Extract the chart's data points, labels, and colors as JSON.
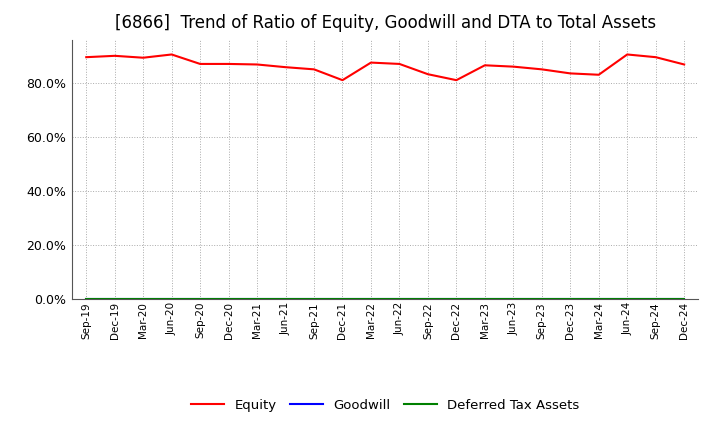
{
  "title": "[6866]  Trend of Ratio of Equity, Goodwill and DTA to Total Assets",
  "x_labels": [
    "Sep-19",
    "Dec-19",
    "Mar-20",
    "Jun-20",
    "Sep-20",
    "Dec-20",
    "Mar-21",
    "Jun-21",
    "Sep-21",
    "Dec-21",
    "Mar-22",
    "Jun-22",
    "Sep-22",
    "Dec-22",
    "Mar-23",
    "Jun-23",
    "Sep-23",
    "Dec-23",
    "Mar-24",
    "Jun-24",
    "Sep-24",
    "Dec-24"
  ],
  "equity": [
    0.895,
    0.9,
    0.893,
    0.905,
    0.87,
    0.87,
    0.868,
    0.858,
    0.85,
    0.81,
    0.875,
    0.87,
    0.832,
    0.81,
    0.865,
    0.86,
    0.85,
    0.835,
    0.83,
    0.905,
    0.895,
    0.868
  ],
  "goodwill": [
    0.0,
    0.0,
    0.0,
    0.0,
    0.0,
    0.0,
    0.0,
    0.0,
    0.0,
    0.0,
    0.0,
    0.0,
    0.0,
    0.0,
    0.0,
    0.0,
    0.0,
    0.0,
    0.0,
    0.0,
    0.0,
    0.0
  ],
  "dta": [
    0.0,
    0.0,
    0.0,
    0.0,
    0.0,
    0.0,
    0.0,
    0.0,
    0.0,
    0.0,
    0.0,
    0.0,
    0.0,
    0.0,
    0.0,
    0.0,
    0.0,
    0.0,
    0.0,
    0.0,
    0.0,
    0.0
  ],
  "equity_color": "#FF0000",
  "goodwill_color": "#0000FF",
  "dta_color": "#008000",
  "ylim": [
    0.0,
    0.96
  ],
  "yticks": [
    0.0,
    0.2,
    0.4,
    0.6,
    0.8
  ],
  "background_color": "#FFFFFF",
  "plot_background": "#FFFFFF",
  "grid_color": "#AAAAAA",
  "title_fontsize": 12,
  "legend_labels": [
    "Equity",
    "Goodwill",
    "Deferred Tax Assets"
  ]
}
